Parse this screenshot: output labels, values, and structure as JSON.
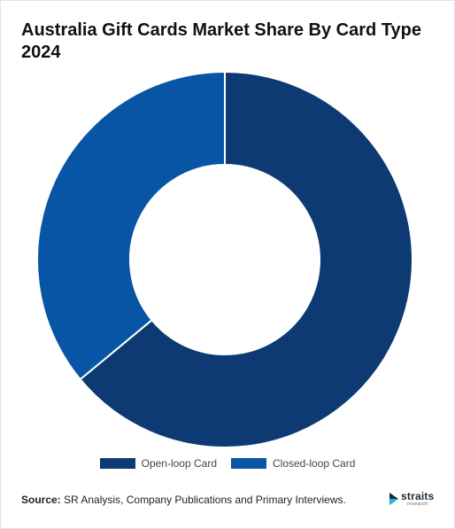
{
  "title": "Australia Gift Cards Market Share By Card Type 2024",
  "source_label": "Source:",
  "source_text": "SR Analysis, Company Publications and Primary Interviews.",
  "brand": {
    "name": "straits",
    "sub": "research",
    "icon": "straits-logo-icon",
    "accent": "#1fb5e6"
  },
  "chart_data": {
    "type": "pie",
    "donut": true,
    "categories": [
      "Open-loop Card",
      "Closed-loop Card"
    ],
    "values": [
      64,
      36
    ],
    "colors": [
      "#0d3a73",
      "#0855a6"
    ],
    "legend": "bottom"
  }
}
